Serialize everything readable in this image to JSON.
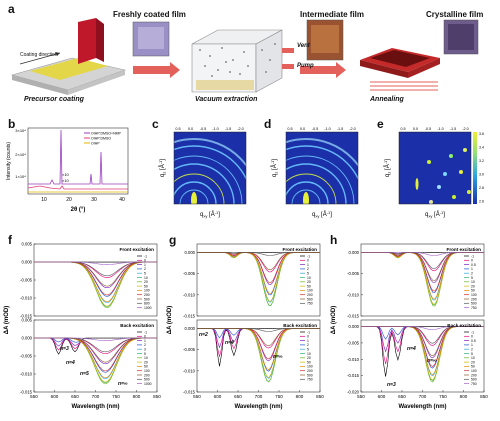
{
  "panel_letters": [
    "a",
    "b",
    "c",
    "d",
    "e",
    "f",
    "g",
    "h"
  ],
  "panel_a": {
    "labels": {
      "fresh": "Freshly coated film",
      "intermediate": "Intermediate film",
      "crystalline": "Crystalline film",
      "coating_dir": "Coating direction",
      "vent": "Vent",
      "pump": "Pump",
      "step1": "Precursor coating",
      "step2": "Vacuum extraction",
      "step3": "Annealing"
    },
    "colors": {
      "arrow": "#e4605a",
      "film_yellow": "#e6d63a",
      "blade": "#c0182b",
      "anneal": "#c52a2a"
    }
  },
  "panel_b": {
    "xlabel": "2θ (°)",
    "ylabel": "Intensity (counts)",
    "legend": [
      "OIHP:DMSO+NMP",
      "OIHP:DMSO",
      "OIHP"
    ],
    "multipliers": [
      "×10",
      "×10"
    ]
  },
  "gixrd": {
    "top_ticks": [
      "0.5",
      "0.0",
      "-0.5",
      "-1.0",
      "-1.5",
      "-2.0"
    ],
    "qz": "q",
    "qz_sub": "z",
    "qxy": "q",
    "qxy_sub": "xy",
    "unit": "[Å",
    "unit_sup": "-1",
    "unit_close": "]",
    "colorbar_ticks": [
      "3.6",
      "3.4",
      "3.2",
      "3.0",
      "2.8",
      "2.6"
    ]
  },
  "ta": {
    "ylabel": "ΔA (mOD)",
    "xlabel": "Wavelength (nm)",
    "front": "Front excitation",
    "back": "Back excitation"
  },
  "chart_data": [
    {
      "panel": "f",
      "type": "line",
      "x_ticks": [
        "550",
        "600",
        "650",
        "700",
        "750",
        "800",
        "850"
      ],
      "top": {
        "yticks": [
          "0.005",
          "0.000",
          "-0.005",
          "-0.010",
          "-0.015"
        ],
        "ylim": [
          -0.015,
          0.005
        ]
      },
      "bottom": {
        "yticks": [
          "0.005",
          "0.000",
          "-0.005",
          "-0.010",
          "-0.015"
        ],
        "ylim": [
          -0.015,
          0.005
        ]
      },
      "legend_top": [
        "-1",
        "0",
        "1",
        "2",
        "5",
        "10",
        "20",
        "50",
        "100",
        "200",
        "500",
        "800",
        "1000"
      ],
      "legend_bottom": [
        "-1",
        "0",
        "1",
        "2",
        "3",
        "5",
        "10",
        "20",
        "50",
        "100",
        "200",
        "500",
        "1000"
      ],
      "annotations": [
        "n=3",
        "n=4",
        "n=5",
        "n=∞"
      ]
    },
    {
      "panel": "g",
      "type": "line",
      "x_ticks": [
        "550",
        "600",
        "650",
        "700",
        "750",
        "800",
        "850"
      ],
      "top": {
        "yticks": [
          "0.000",
          "-0.005",
          "-0.010",
          "-0.015"
        ],
        "ylim": [
          -0.015,
          0.002
        ]
      },
      "bottom": {
        "yticks": [
          "0.000",
          "-0.005",
          "-0.010",
          "-0.015"
        ],
        "ylim": [
          -0.015,
          0.002
        ]
      },
      "legend_top": [
        "-1",
        "0",
        "1",
        "2",
        "5",
        "10",
        "20",
        "50",
        "100",
        "200",
        "500",
        "750"
      ],
      "legend_bottom": [
        "-1",
        "0",
        "1",
        "2",
        "5",
        "10",
        "20",
        "50",
        "100",
        "200",
        "500",
        "750"
      ],
      "annotations": [
        "n=2",
        "n=4",
        "n=∞"
      ]
    },
    {
      "panel": "h",
      "type": "line",
      "x_ticks": [
        "550",
        "600",
        "650",
        "700",
        "750",
        "800",
        "850"
      ],
      "top": {
        "yticks": [
          "0.000",
          "-0.005",
          "-0.010",
          "-0.015"
        ],
        "ylim": [
          -0.015,
          0.002
        ]
      },
      "bottom": {
        "yticks": [
          "0.000",
          "-0.005",
          "-0.010",
          "-0.015",
          "-0.020"
        ],
        "ylim": [
          -0.02,
          0.002
        ]
      },
      "legend_top": [
        "-1",
        "0",
        "0.5",
        "1",
        "2",
        "5",
        "10",
        "20",
        "50",
        "100",
        "200",
        "500",
        "750"
      ],
      "legend_bottom": [
        "-1",
        "0",
        "0.5",
        "1",
        "2",
        "5",
        "10",
        "20",
        "50",
        "100",
        "200",
        "500",
        "750"
      ],
      "annotations": [
        "n=4",
        "n=3",
        "n=∞"
      ]
    }
  ]
}
